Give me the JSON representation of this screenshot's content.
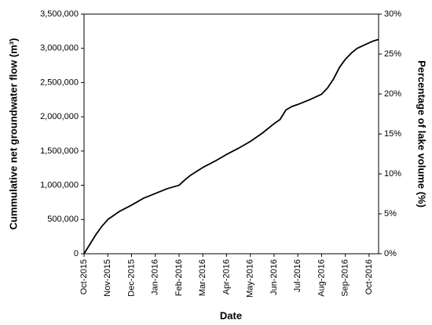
{
  "chart_data": {
    "type": "line",
    "y_label": "Cummulative net groundwater flow (m³)",
    "x_label": "Date",
    "y2_label": "Percentage of lake volume (%)",
    "color": "#000000",
    "x": [
      0,
      0.25,
      0.5,
      0.75,
      1,
      1.5,
      2,
      2.5,
      3,
      3.5,
      4,
      4.25,
      4.5,
      5,
      5.5,
      6,
      6.5,
      7,
      7.5,
      8,
      8.25,
      8.5,
      8.75,
      9,
      9.5,
      10,
      10.25,
      10.5,
      10.75,
      11,
      11.25,
      11.5,
      11.75,
      12,
      12.2,
      12.4
    ],
    "values": [
      0,
      140000,
      280000,
      400000,
      500000,
      620000,
      710000,
      810000,
      880000,
      950000,
      1000000,
      1080000,
      1150000,
      1260000,
      1350000,
      1450000,
      1540000,
      1640000,
      1760000,
      1900000,
      1960000,
      2100000,
      2150000,
      2180000,
      2250000,
      2330000,
      2420000,
      2550000,
      2720000,
      2840000,
      2930000,
      3000000,
      3040000,
      3080000,
      3110000,
      3130000
    ],
    "xlim": [
      0,
      12.4
    ],
    "xticks": [
      {
        "value": 0,
        "label": "Oct-2015"
      },
      {
        "value": 1,
        "label": "Nov-2015"
      },
      {
        "value": 2,
        "label": "Dec-2015"
      },
      {
        "value": 3,
        "label": "Jan-2016"
      },
      {
        "value": 4,
        "label": "Feb-2016"
      },
      {
        "value": 5,
        "label": "Mar-2016"
      },
      {
        "value": 6,
        "label": "Apr-2016"
      },
      {
        "value": 7,
        "label": "May-2016"
      },
      {
        "value": 8,
        "label": "Jun-2016"
      },
      {
        "value": 9,
        "label": "Jul-2016"
      },
      {
        "value": 10,
        "label": "Aug-2016"
      },
      {
        "value": 11,
        "label": "Sep-2016"
      },
      {
        "value": 12,
        "label": "Oct-2016"
      }
    ],
    "ylim": [
      0,
      3500000
    ],
    "yticks": [
      0,
      {
        "value": 500000,
        "label": "500,000"
      },
      {
        "value": 1000000,
        "label": "1,000,000"
      },
      {
        "value": 1500000,
        "label": "1,500,000"
      },
      {
        "value": 2000000,
        "label": "2,000,000"
      },
      {
        "value": 2500000,
        "label": "2,500,000"
      },
      {
        "value": 3000000,
        "label": "3,000,000"
      },
      {
        "value": 3500000,
        "label": "3,500,000"
      }
    ],
    "y2lim": [
      0,
      30
    ],
    "y2ticks": [
      {
        "value": 0,
        "label": "0%"
      },
      {
        "value": 5,
        "label": "5%"
      },
      {
        "value": 10,
        "label": "10%"
      },
      {
        "value": 15,
        "label": "15%"
      },
      {
        "value": 20,
        "label": "20%"
      },
      {
        "value": 25,
        "label": "25%"
      },
      {
        "value": 30,
        "label": "30%"
      }
    ],
    "grid": false
  }
}
